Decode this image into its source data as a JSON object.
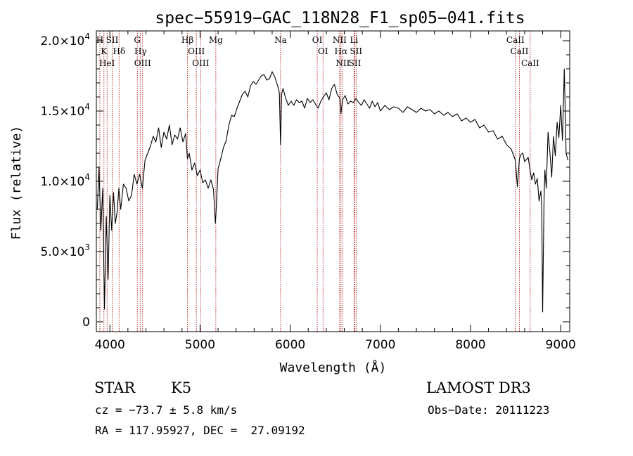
{
  "chart_data": {
    "type": "line",
    "title": "spec−55919−GAC_118N28_F1_sp05−041.fits",
    "xlabel": "Wavelength (Å)",
    "ylabel": "Flux (relative)",
    "xlim": [
      3850,
      9100
    ],
    "ylim": [
      -700,
      20700
    ],
    "x_ticks": [
      {
        "value": 4000,
        "label": "4000"
      },
      {
        "value": 5000,
        "label": "5000"
      },
      {
        "value": 6000,
        "label": "6000"
      },
      {
        "value": 7000,
        "label": "7000"
      },
      {
        "value": 8000,
        "label": "8000"
      },
      {
        "value": 9000,
        "label": "9000"
      }
    ],
    "y_ticks": [
      {
        "value": 0,
        "mant": "0",
        "exp": ""
      },
      {
        "value": 5000,
        "mant": "5.0×10",
        "exp": "3"
      },
      {
        "value": 10000,
        "mant": "1.0×10",
        "exp": "4"
      },
      {
        "value": 15000,
        "mant": "1.5×10",
        "exp": "4"
      },
      {
        "value": 20000,
        "mant": "2.0×10",
        "exp": "4"
      }
    ],
    "series": [
      {
        "name": "flux",
        "color": "#000000",
        "x": [
          3860,
          3880,
          3900,
          3920,
          3940,
          3960,
          3980,
          4000,
          4020,
          4040,
          4060,
          4080,
          4100,
          4120,
          4150,
          4180,
          4210,
          4240,
          4270,
          4300,
          4330,
          4360,
          4390,
          4420,
          4450,
          4480,
          4510,
          4540,
          4570,
          4600,
          4630,
          4660,
          4690,
          4720,
          4750,
          4780,
          4810,
          4840,
          4860,
          4880,
          4910,
          4940,
          4970,
          5000,
          5030,
          5060,
          5090,
          5120,
          5150,
          5170,
          5180,
          5200,
          5230,
          5260,
          5290,
          5320,
          5350,
          5380,
          5410,
          5440,
          5470,
          5500,
          5530,
          5560,
          5590,
          5620,
          5650,
          5680,
          5710,
          5740,
          5770,
          5800,
          5830,
          5860,
          5880,
          5893,
          5905,
          5920,
          5950,
          5980,
          6010,
          6040,
          6070,
          6100,
          6130,
          6160,
          6190,
          6220,
          6250,
          6280,
          6310,
          6340,
          6370,
          6400,
          6430,
          6460,
          6490,
          6520,
          6550,
          6563,
          6580,
          6610,
          6640,
          6670,
          6700,
          6730,
          6760,
          6790,
          6820,
          6850,
          6880,
          6910,
          6940,
          6970,
          7000,
          7050,
          7100,
          7150,
          7200,
          7250,
          7300,
          7350,
          7400,
          7450,
          7500,
          7550,
          7600,
          7650,
          7700,
          7750,
          7800,
          7850,
          7900,
          7950,
          8000,
          8050,
          8100,
          8150,
          8200,
          8250,
          8300,
          8350,
          8400,
          8450,
          8480,
          8498,
          8520,
          8542,
          8560,
          8580,
          8600,
          8640,
          8662,
          8680,
          8700,
          8720,
          8740,
          8760,
          8780,
          8790,
          8800,
          8815,
          8825,
          8840,
          8860,
          8880,
          8900,
          8920,
          8940,
          8960,
          8980,
          9000,
          9020,
          9040,
          9060,
          9080
        ],
        "values": [
          8000,
          11000,
          6500,
          9500,
          900,
          7500,
          3000,
          9000,
          6500,
          9200,
          7000,
          7800,
          9500,
          8000,
          9800,
          9500,
          8600,
          9000,
          10500,
          9800,
          10500,
          9500,
          11500,
          12000,
          12500,
          13200,
          12800,
          13800,
          12400,
          13500,
          13000,
          14000,
          12600,
          13300,
          13000,
          13800,
          12800,
          13400,
          11600,
          12000,
          10800,
          11300,
          10400,
          10800,
          9900,
          10100,
          9500,
          10100,
          9400,
          7000,
          8100,
          10900,
          11600,
          12400,
          12900,
          14000,
          14700,
          14600,
          15200,
          15700,
          16200,
          16400,
          16000,
          16800,
          17100,
          16900,
          17200,
          17500,
          17600,
          17200,
          17300,
          17800,
          17400,
          16800,
          16300,
          12600,
          16200,
          16600,
          15900,
          15400,
          15700,
          15400,
          15800,
          15600,
          15700,
          15200,
          15900,
          15600,
          15800,
          15500,
          15200,
          15700,
          16000,
          16300,
          15800,
          16600,
          16900,
          16200,
          15900,
          14800,
          15800,
          16100,
          15500,
          15700,
          15600,
          15900,
          15600,
          15400,
          15800,
          15500,
          15200,
          15700,
          15300,
          15600,
          15000,
          15400,
          15100,
          15300,
          15200,
          14900,
          15300,
          15100,
          14900,
          15200,
          15000,
          15100,
          14800,
          15000,
          14700,
          14900,
          14600,
          14800,
          14300,
          14500,
          14200,
          14400,
          13800,
          14000,
          13500,
          13600,
          13000,
          13200,
          12600,
          12300,
          11800,
          11500,
          9600,
          11600,
          11900,
          12000,
          11400,
          11700,
          10700,
          10100,
          10600,
          9800,
          10200,
          8600,
          9300,
          8000,
          700,
          8600,
          10800,
          9500,
          13500,
          12100,
          10300,
          13200,
          11800,
          14200,
          13100,
          15400,
          12900,
          18000,
          12000,
          11500
        ]
      }
    ],
    "lines": [
      {
        "wl": 3889,
        "labels": [
          "H"
        ]
      },
      {
        "wl": 3934,
        "labels": [
          "K"
        ]
      },
      {
        "wl": 3969,
        "labels": [
          "HeI"
        ]
      },
      {
        "wl": 4026,
        "labels": [
          "SII"
        ]
      },
      {
        "wl": 4102,
        "labels": [
          "Hδ"
        ]
      },
      {
        "wl": 4304,
        "labels": [
          "G"
        ]
      },
      {
        "wl": 4340,
        "labels": [
          "Hγ"
        ]
      },
      {
        "wl": 4363,
        "labels": [
          "OIII"
        ]
      },
      {
        "wl": 4861,
        "labels": [
          "Hβ"
        ]
      },
      {
        "wl": 4959,
        "labels": [
          "OIII"
        ]
      },
      {
        "wl": 5007,
        "labels": [
          "OIII"
        ]
      },
      {
        "wl": 5175,
        "labels": [
          "Mg"
        ]
      },
      {
        "wl": 5893,
        "labels": [
          "Na"
        ]
      },
      {
        "wl": 6300,
        "labels": [
          "OI"
        ]
      },
      {
        "wl": 6364,
        "labels": [
          "OI"
        ]
      },
      {
        "wl": 6548,
        "labels": [
          "NII"
        ]
      },
      {
        "wl": 6563,
        "labels": [
          "Hα"
        ]
      },
      {
        "wl": 6583,
        "labels": [
          "NII"
        ]
      },
      {
        "wl": 6708,
        "labels": [
          "Li"
        ]
      },
      {
        "wl": 6717,
        "labels": [
          "SII"
        ]
      },
      {
        "wl": 6731,
        "labels": [
          "SII"
        ]
      },
      {
        "wl": 8498,
        "labels": [
          "CaII"
        ]
      },
      {
        "wl": 8542,
        "labels": [
          "CaII"
        ]
      },
      {
        "wl": 8662,
        "labels": [
          "CaII"
        ]
      }
    ],
    "line_color": "#b22222",
    "grid": false,
    "legend": "none"
  },
  "info": {
    "class": "STAR",
    "subclass": "K5",
    "survey": "LAMOST DR3",
    "cz": "cz = −73.7 ± 5.8 km/s",
    "obs_date": "Obs−Date: 20111223",
    "coords": "RA = 117.95927, DEC =  27.09192"
  }
}
